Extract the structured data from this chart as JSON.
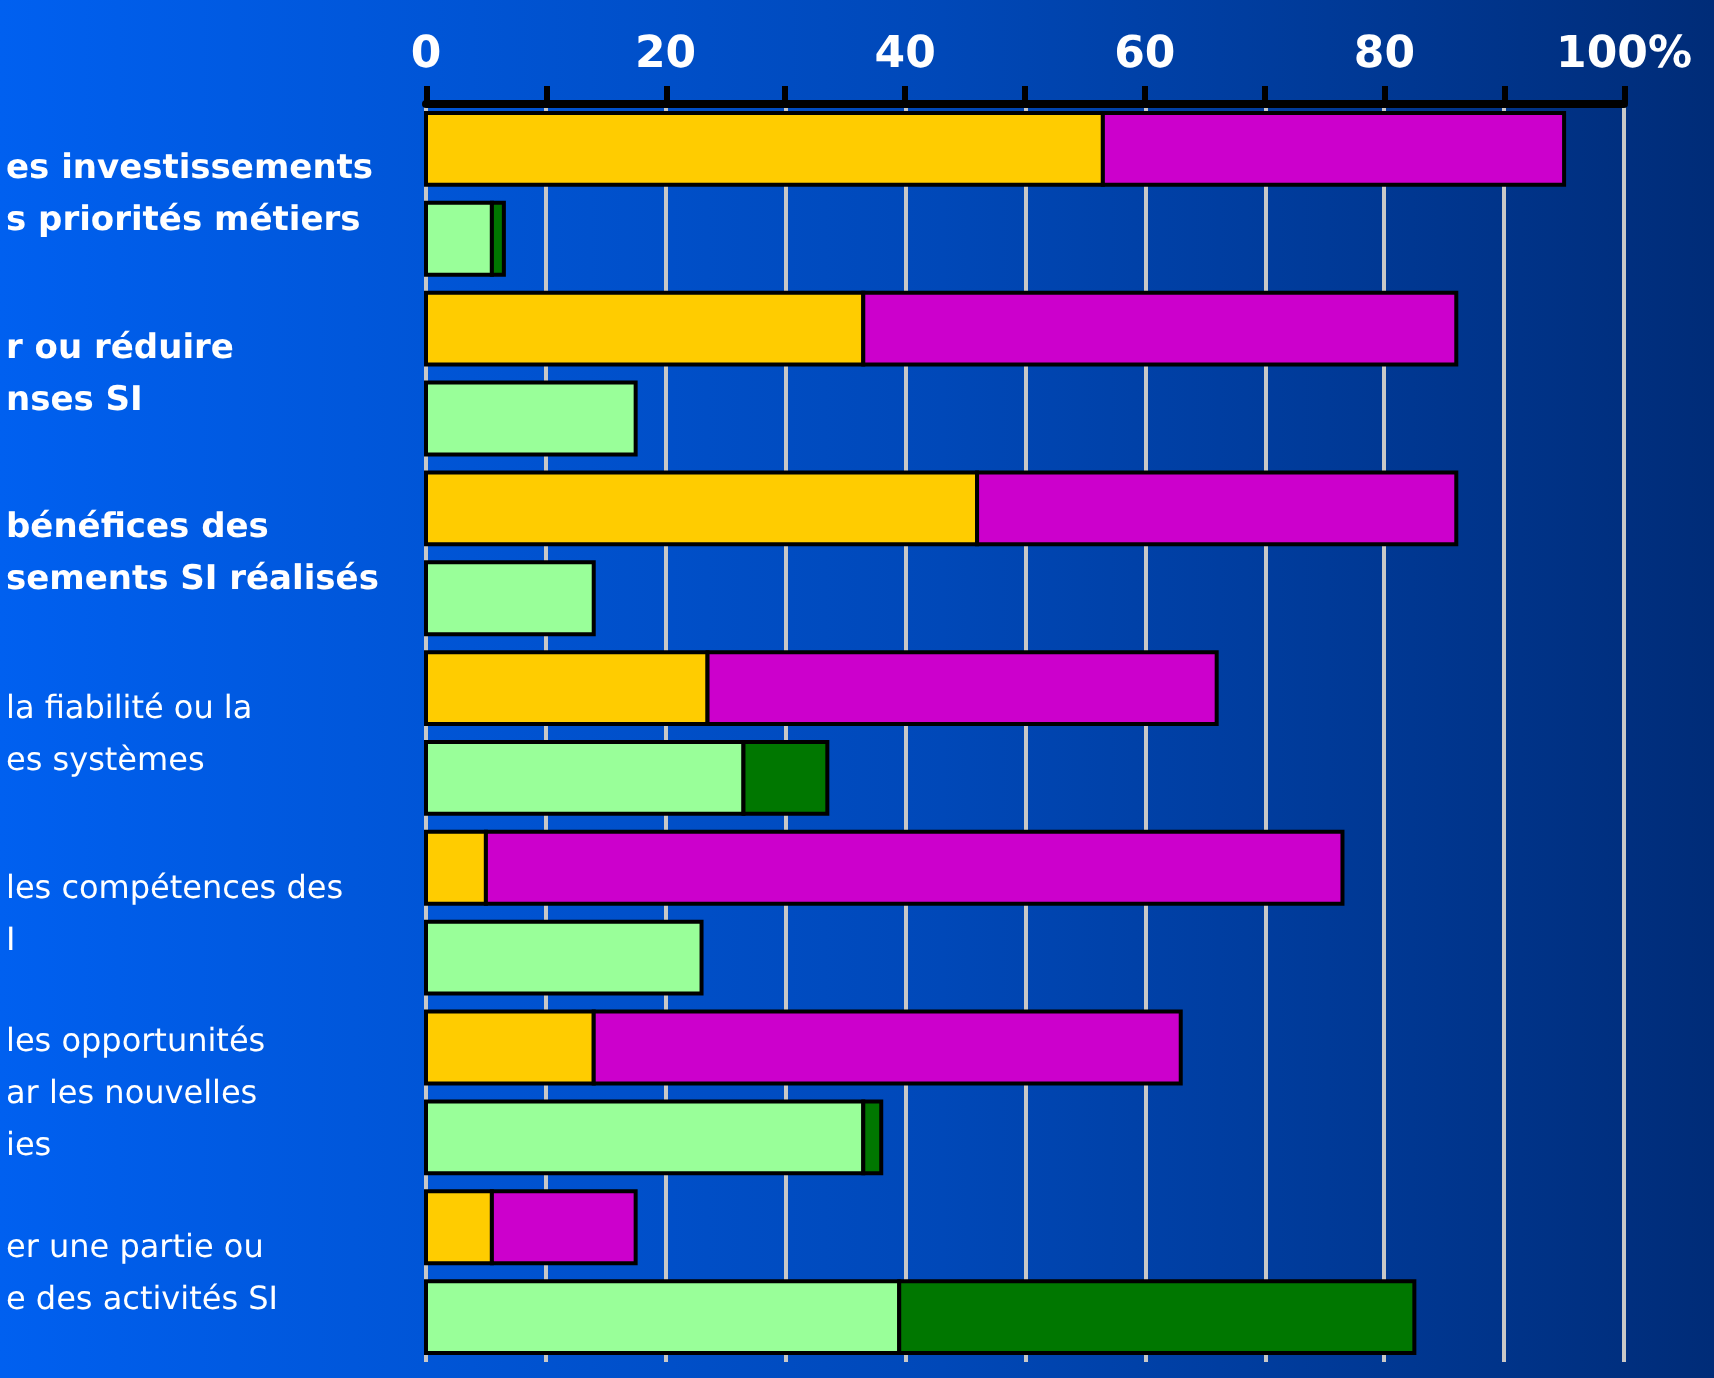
{
  "chart_data": {
    "type": "bar",
    "orientation": "horizontal",
    "stacked": true,
    "categories": [
      "es investissements\ns priorités métiers",
      null,
      "r ou réduire\nnses SI",
      null,
      "bénéfices des\nsements SI réalisés",
      null,
      "la fiabilité ou la\nes systèmes",
      null,
      "les compétences des\nI",
      null,
      "les opportunités\nar les nouvelles\nies",
      null,
      "er une partie ou\ne des activités SI",
      null
    ],
    "series": [
      {
        "color": "#ffcc00",
        "values": [
          56.5,
          null,
          36.5,
          null,
          46,
          null,
          23.5,
          null,
          5,
          null,
          14,
          null,
          5.5,
          null
        ]
      },
      {
        "color": "#cc00cc",
        "values": [
          38.5,
          null,
          49.5,
          null,
          40,
          null,
          42.5,
          null,
          71.5,
          null,
          49,
          null,
          12,
          null
        ]
      },
      {
        "color": "#99ff99",
        "values": [
          null,
          5.5,
          null,
          17.5,
          null,
          14,
          null,
          26.5,
          null,
          23,
          null,
          36.5,
          null,
          39.5
        ]
      },
      {
        "color": "#007700",
        "values": [
          null,
          1,
          null,
          null,
          null,
          null,
          null,
          7,
          null,
          null,
          null,
          1.5,
          null,
          43
        ]
      }
    ],
    "xlim": [
      0,
      100
    ],
    "xticks": [
      0,
      20,
      40,
      60,
      80,
      {
        "value": 100,
        "label": "100%"
      }
    ],
    "grid": "x"
  }
}
